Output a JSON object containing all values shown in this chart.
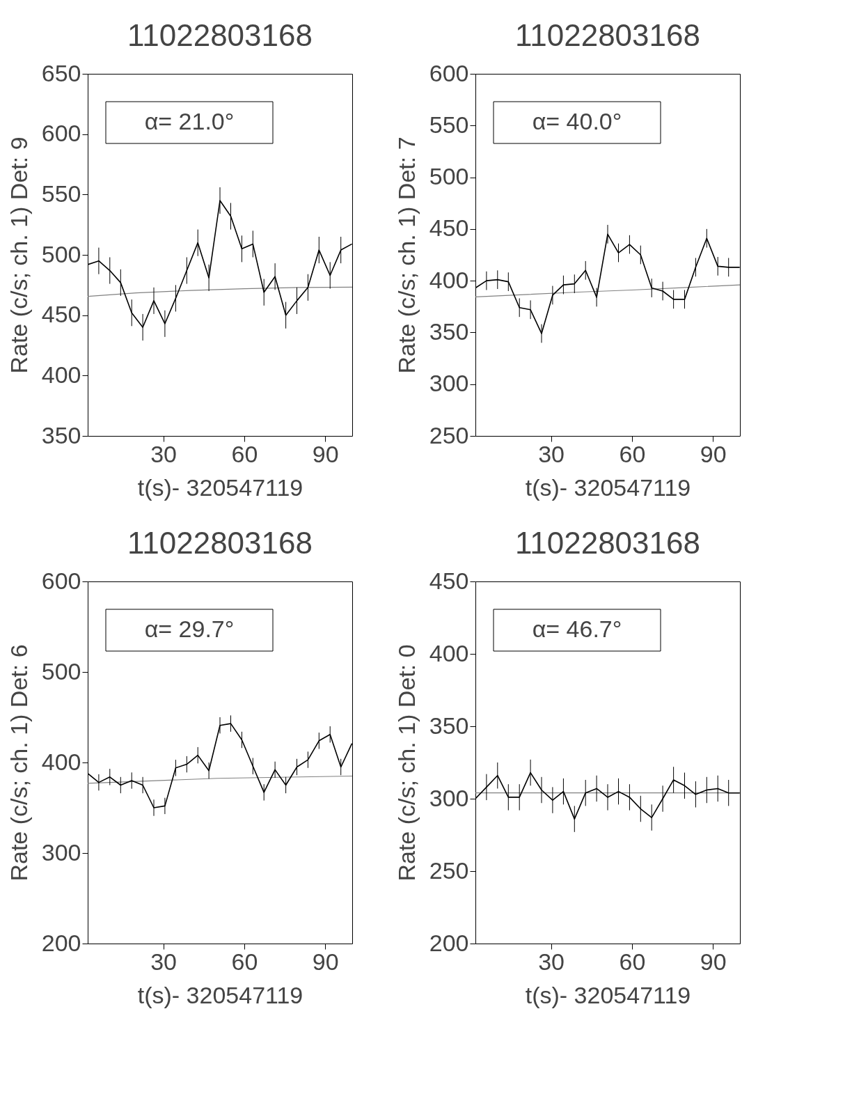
{
  "chart_data": [
    {
      "type": "line",
      "title": "11022803168",
      "xlabel": "t(s)- 320547119",
      "ylabel": "Rate (c/s; ch. 1) Det: 9",
      "annotations": [
        "α= 21.0°"
      ],
      "grid": false,
      "xlim": [
        2,
        100
      ],
      "xticks": [
        30,
        60,
        90
      ],
      "ylim": [
        350,
        650
      ],
      "yticks": [
        350,
        400,
        450,
        500,
        550,
        600,
        650
      ],
      "x": [
        2.0,
        6.1,
        10.2,
        14.2,
        18.3,
        22.4,
        26.5,
        30.6,
        34.6,
        38.7,
        42.8,
        46.9,
        51.0,
        55.0,
        59.1,
        63.2,
        67.3,
        71.4,
        75.4,
        79.5,
        83.6,
        87.7,
        91.8,
        95.8,
        99.9
      ],
      "series": [
        {
          "color": "#000000",
          "values": [
            492,
            495,
            487,
            477,
            452,
            440,
            462,
            443,
            464,
            487,
            510,
            481,
            545,
            532,
            505,
            509,
            469,
            482,
            450,
            462,
            473,
            504,
            483,
            504,
            509
          ],
          "errors": [
            null,
            11,
            11,
            11,
            11,
            11,
            11,
            11,
            11,
            11,
            11,
            11,
            11,
            11,
            11,
            11,
            11,
            11,
            11,
            11,
            11,
            11,
            11,
            11,
            null
          ]
        },
        {
          "type": "line",
          "color": "#808080",
          "x": [
            2,
            20,
            40,
            60,
            80,
            100
          ],
          "values": [
            465.6,
            468.5,
            470.5,
            472,
            473,
            473.3
          ]
        }
      ]
    },
    {
      "type": "line",
      "title": "11022803168",
      "xlabel": "t(s)- 320547119",
      "ylabel": "Rate (c/s; ch. 1) Det: 7",
      "annotations": [
        "α= 40.0°"
      ],
      "grid": false,
      "xlim": [
        2,
        100
      ],
      "xticks": [
        30,
        60,
        90
      ],
      "ylim": [
        250,
        600
      ],
      "yticks": [
        250,
        300,
        350,
        400,
        450,
        500,
        550,
        600
      ],
      "x": [
        2.0,
        6.1,
        10.2,
        14.2,
        18.3,
        22.4,
        26.5,
        30.6,
        34.6,
        38.7,
        42.8,
        46.9,
        51.0,
        55.0,
        59.1,
        63.2,
        67.3,
        71.4,
        75.4,
        79.5,
        83.6,
        87.7,
        91.8,
        95.8,
        99.9
      ],
      "series": [
        {
          "color": "#000000",
          "values": [
            393,
            400,
            401,
            399,
            374,
            372,
            349,
            386,
            396,
            397,
            410,
            384,
            445,
            427,
            435,
            425,
            393,
            390,
            382,
            382,
            413,
            441,
            414,
            413,
            413
          ],
          "errors": [
            null,
            9,
            9,
            9,
            9,
            9,
            9,
            9,
            9,
            9,
            9,
            9,
            9,
            9,
            9,
            9,
            9,
            9,
            9,
            9,
            9,
            9,
            9,
            9,
            null
          ]
        },
        {
          "type": "line",
          "color": "#808080",
          "x": [
            2,
            20,
            40,
            60,
            80,
            100
          ],
          "values": [
            384.4,
            386.6,
            389,
            391,
            393.5,
            396
          ]
        }
      ]
    },
    {
      "type": "line",
      "title": "11022803168",
      "xlabel": "t(s)- 320547119",
      "ylabel": "Rate (c/s; ch. 1) Det: 6",
      "annotations": [
        "α= 29.7°"
      ],
      "grid": false,
      "xlim": [
        2,
        100
      ],
      "xticks": [
        30,
        60,
        90
      ],
      "ylim": [
        200,
        600
      ],
      "yticks": [
        200,
        300,
        400,
        500,
        600
      ],
      "x": [
        2.0,
        6.1,
        10.2,
        14.2,
        18.3,
        22.4,
        26.5,
        30.6,
        34.6,
        38.7,
        42.8,
        46.9,
        51.0,
        55.0,
        59.1,
        63.2,
        67.3,
        71.4,
        75.4,
        79.5,
        83.6,
        87.7,
        91.8,
        95.8,
        99.9
      ],
      "series": [
        {
          "color": "#000000",
          "values": [
            388,
            378,
            384,
            375,
            380,
            375,
            350,
            352,
            394,
            398,
            408,
            391,
            441,
            443,
            425,
            396,
            367,
            392,
            375,
            395,
            403,
            424,
            431,
            395,
            421
          ],
          "errors": [
            null,
            9,
            9,
            9,
            9,
            9,
            9,
            9,
            9,
            9,
            9,
            9,
            9,
            9,
            9,
            9,
            9,
            9,
            9,
            9,
            9,
            9,
            9,
            9,
            null
          ]
        },
        {
          "type": "line",
          "color": "#808080",
          "x": [
            2,
            50,
            100
          ],
          "values": [
            377,
            382.5,
            385
          ]
        }
      ]
    },
    {
      "type": "line",
      "title": "11022803168",
      "xlabel": "t(s)- 320547119",
      "ylabel": "Rate (c/s; ch. 1) Det: 0",
      "annotations": [
        "α= 46.7°"
      ],
      "grid": false,
      "xlim": [
        2,
        100
      ],
      "xticks": [
        30,
        60,
        90
      ],
      "ylim": [
        200,
        450
      ],
      "yticks": [
        200,
        250,
        300,
        350,
        400,
        450
      ],
      "x": [
        2.0,
        6.1,
        10.2,
        14.2,
        18.3,
        22.4,
        26.5,
        30.6,
        34.6,
        38.7,
        42.8,
        46.9,
        51.0,
        55.0,
        59.1,
        63.2,
        67.3,
        71.4,
        75.4,
        79.5,
        83.6,
        87.7,
        91.8,
        95.8,
        99.9
      ],
      "series": [
        {
          "color": "#000000",
          "values": [
            300,
            308,
            316,
            301,
            301,
            318,
            306,
            299,
            305,
            286,
            304,
            307,
            301,
            305,
            301,
            293,
            287,
            300,
            313,
            309,
            303,
            306,
            307,
            304,
            304
          ],
          "errors": [
            null,
            9,
            9,
            9,
            9,
            9,
            9,
            9,
            9,
            9,
            9,
            9,
            9,
            9,
            9,
            9,
            9,
            9,
            9,
            9,
            9,
            9,
            9,
            9,
            null
          ]
        },
        {
          "type": "line",
          "color": "#808080",
          "x": [
            2,
            100
          ],
          "values": [
            304,
            304
          ]
        }
      ]
    }
  ]
}
